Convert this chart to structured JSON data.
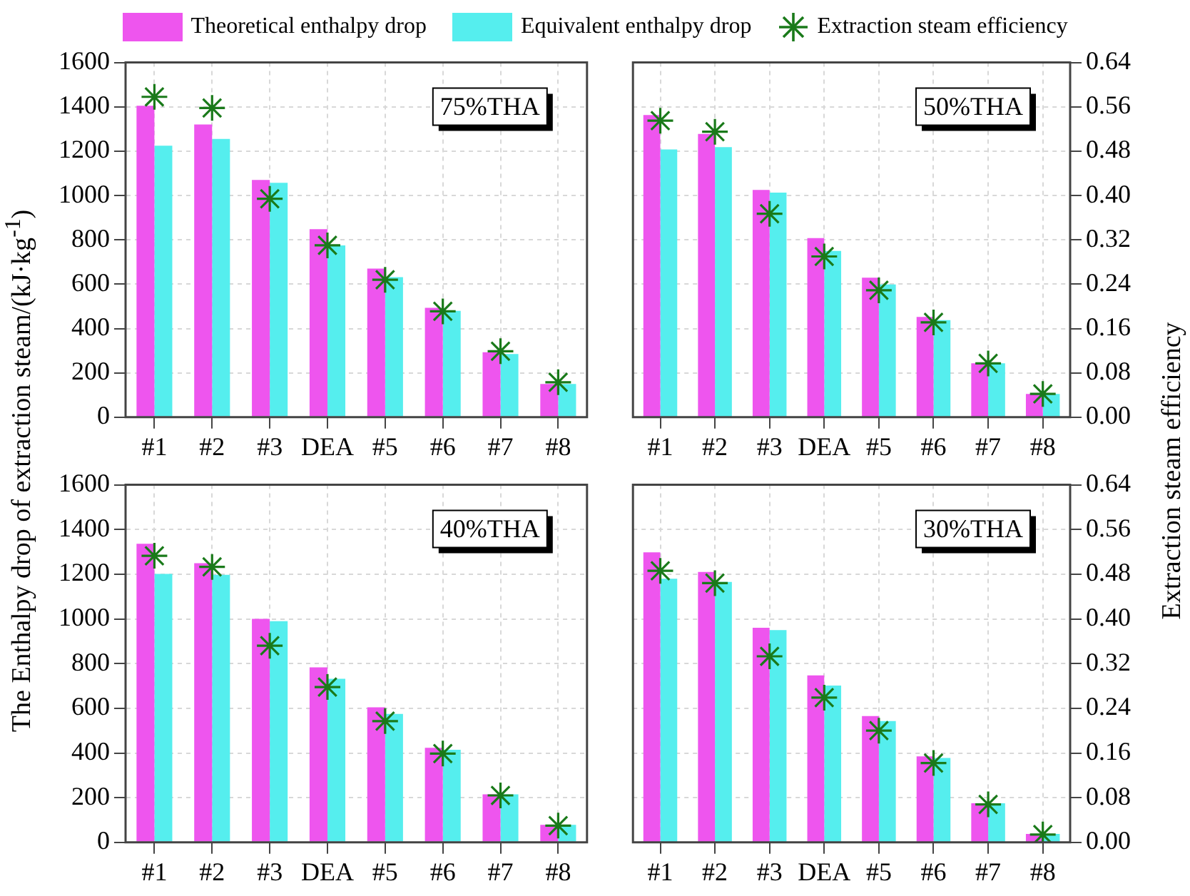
{
  "chart_data": [
    {
      "type": "bar",
      "ylabel": "The Enthalpy drop of extraction steam/(kJ·kg$^{-1}$)",
      "categories": [
        "#1",
        "#2",
        "#3",
        "DEA",
        "#5",
        "#6",
        "#7",
        "#8"
      ],
      "series": [
        {
          "name": "Theoretical enthalpy drop",
          "color": "#ee55ee",
          "values": [
            1405,
            1320,
            1070,
            848,
            670,
            493,
            293,
            150
          ]
        },
        {
          "name": "Equivalent enthalpy drop",
          "color": "#55eeee",
          "values": [
            1225,
            1255,
            1057,
            775,
            632,
            480,
            285,
            150
          ]
        },
        {
          "name": "Extraction steam efficiency",
          "type": "scatter",
          "axis": "y2",
          "color": "#1a7a1a",
          "values": [
            0.578,
            0.558,
            0.394,
            0.31,
            0.248,
            0.191,
            0.119,
            0.063
          ]
        }
      ],
      "annotations": [
        "75%THA"
      ],
      "ylim": [
        0,
        1600
      ],
      "yticks": [
        0,
        200,
        400,
        600,
        800,
        1000,
        1200,
        1400,
        1600
      ],
      "y2lim": [
        0,
        0.64
      ],
      "tick_labels": "xy",
      "grid": true,
      "legend": "top",
      "marker": "cross"
    },
    {
      "type": "bar",
      "y2label": "Extraction steam efficiency",
      "categories": [
        "#1",
        "#2",
        "#3",
        "DEA",
        "#5",
        "#6",
        "#7",
        "#8"
      ],
      "series": [
        {
          "color": "#ee55ee",
          "values": [
            1363,
            1278,
            1025,
            808,
            629,
            452,
            243,
            105
          ]
        },
        {
          "color": "#55eeee",
          "values": [
            1208,
            1218,
            1013,
            750,
            599,
            438,
            243,
            105
          ]
        },
        {
          "type": "scatter",
          "axis": "y2",
          "color": "#1a7a1a",
          "values": [
            0.535,
            0.515,
            0.367,
            0.29,
            0.229,
            0.171,
            0.097,
            0.042
          ]
        }
      ],
      "annotations": [
        "50%THA"
      ],
      "ylim": [
        0,
        1600
      ],
      "y2lim": [
        0,
        0.64
      ],
      "y2ticks": [
        {
          "value": 0,
          "label": "0.00"
        },
        {
          "value": 0.08,
          "label": "0.08"
        },
        {
          "value": 0.16,
          "label": "0.16"
        },
        {
          "value": 0.24,
          "label": "0.24"
        },
        {
          "value": 0.32,
          "label": "0.32"
        },
        {
          "value": 0.4,
          "label": "0.40"
        },
        {
          "value": 0.48,
          "label": "0.48"
        },
        {
          "value": 0.56,
          "label": "0.56"
        },
        {
          "value": 0.64,
          "label": "0.64"
        }
      ],
      "tick_labels": "xy2",
      "grid": true,
      "marker": "cross"
    },
    {
      "type": "bar",
      "categories": [
        "#1",
        "#2",
        "#3",
        "DEA",
        "#5",
        "#6",
        "#7",
        "#8"
      ],
      "series": [
        {
          "color": "#ee55ee",
          "values": [
            1336,
            1249,
            1000,
            783,
            604,
            423,
            215,
            78
          ]
        },
        {
          "color": "#55eeee",
          "values": [
            1201,
            1197,
            990,
            732,
            575,
            414,
            215,
            78
          ]
        },
        {
          "type": "scatter",
          "axis": "y2",
          "color": "#1a7a1a",
          "values": [
            0.513,
            0.493,
            0.352,
            0.278,
            0.217,
            0.159,
            0.084,
            0.03
          ]
        }
      ],
      "annotations": [
        "40%THA"
      ],
      "ylim": [
        0,
        1600
      ],
      "yticks": [
        0,
        200,
        400,
        600,
        800,
        1000,
        1200,
        1400,
        1600
      ],
      "y2lim": [
        0,
        0.64
      ],
      "tick_labels": "xy",
      "grid": true,
      "marker": "cross"
    },
    {
      "type": "bar",
      "categories": [
        "#1",
        "#2",
        "#3",
        "DEA",
        "#5",
        "#6",
        "#7",
        "#8"
      ],
      "series": [
        {
          "color": "#ee55ee",
          "values": [
            1298,
            1210,
            960,
            747,
            565,
            385,
            175,
            38
          ]
        },
        {
          "color": "#55eeee",
          "values": [
            1180,
            1165,
            950,
            702,
            543,
            378,
            175,
            38
          ]
        },
        {
          "type": "scatter",
          "axis": "y2",
          "color": "#1a7a1a",
          "values": [
            0.486,
            0.464,
            0.333,
            0.259,
            0.2,
            0.142,
            0.068,
            0.014
          ]
        }
      ],
      "annotations": [
        "30%THA"
      ],
      "ylim": [
        0,
        1600
      ],
      "y2lim": [
        0,
        0.64
      ],
      "y2ticks": [
        {
          "value": 0,
          "label": "0.00"
        },
        {
          "value": 0.08,
          "label": "0.08"
        },
        {
          "value": 0.16,
          "label": "0.16"
        },
        {
          "value": 0.24,
          "label": "0.24"
        },
        {
          "value": 0.32,
          "label": "0.32"
        },
        {
          "value": 0.4,
          "label": "0.40"
        },
        {
          "value": 0.48,
          "label": "0.48"
        },
        {
          "value": 0.56,
          "label": "0.56"
        },
        {
          "value": 0.64,
          "label": "0.64"
        }
      ],
      "tick_labels": "xy2",
      "grid": true,
      "marker": "cross"
    }
  ]
}
